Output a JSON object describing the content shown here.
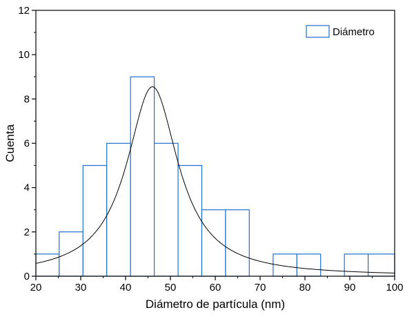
{
  "chart_data": {
    "type": "bar",
    "xlabel": "Diámetro de partícula (nm)",
    "ylabel": "Cuenta",
    "xlim": [
      20,
      100
    ],
    "ylim": [
      0,
      12
    ],
    "x_ticks": [
      20,
      30,
      40,
      50,
      60,
      70,
      80,
      90,
      100
    ],
    "y_ticks": [
      0,
      2,
      4,
      6,
      8,
      10,
      12
    ],
    "grid": false,
    "legend_position": "top-right",
    "bar_stroke_color": "#1f6fd0",
    "bar_fill_color": "#ffffff",
    "curve_color": "#000000",
    "series": [
      {
        "name": "Diámetro",
        "bins": [
          {
            "x0": 20,
            "x1": 25.2,
            "count": 1
          },
          {
            "x0": 25.2,
            "x1": 30.5,
            "count": 2
          },
          {
            "x0": 30.5,
            "x1": 35.8,
            "count": 5
          },
          {
            "x0": 35.8,
            "x1": 41.1,
            "count": 6
          },
          {
            "x0": 41.1,
            "x1": 46.4,
            "count": 9
          },
          {
            "x0": 46.4,
            "x1": 51.7,
            "count": 6
          },
          {
            "x0": 51.7,
            "x1": 57.0,
            "count": 5
          },
          {
            "x0": 57.0,
            "x1": 62.3,
            "count": 3
          },
          {
            "x0": 62.3,
            "x1": 67.6,
            "count": 3
          },
          {
            "x0": 67.6,
            "x1": 72.9,
            "count": 0
          },
          {
            "x0": 72.9,
            "x1": 78.2,
            "count": 1
          },
          {
            "x0": 78.2,
            "x1": 83.5,
            "count": 1
          },
          {
            "x0": 83.5,
            "x1": 88.8,
            "count": 0
          },
          {
            "x0": 88.8,
            "x1": 94.1,
            "count": 1
          },
          {
            "x0": 94.1,
            "x1": 100,
            "count": 1
          }
        ]
      }
    ],
    "fit_curve": {
      "type": "lorentzian",
      "center": 46,
      "height": 8.55,
      "hwhm": 7.0
    }
  }
}
